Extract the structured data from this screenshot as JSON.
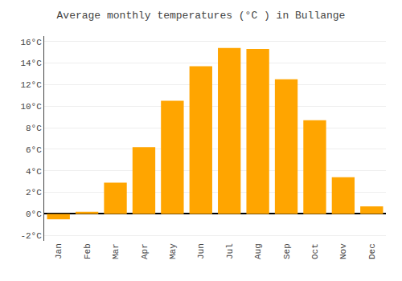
{
  "chart_data": {
    "type": "bar",
    "title": "Average monthly temperatures (°C ) in Bullange",
    "categories": [
      "Jan",
      "Feb",
      "Mar",
      "Apr",
      "May",
      "Jun",
      "Jul",
      "Aug",
      "Sep",
      "Oct",
      "Nov",
      "Dec"
    ],
    "values": [
      -0.5,
      0.2,
      2.9,
      6.2,
      10.5,
      13.7,
      15.4,
      15.3,
      12.5,
      8.7,
      3.4,
      0.7
    ],
    "color": "#FFA500",
    "ylim": [
      -2.5,
      16.5
    ],
    "yticks": [
      {
        "value": -2,
        "label": "-2°C"
      },
      {
        "value": 0,
        "label": "0°C"
      },
      {
        "value": 2,
        "label": "2°C"
      },
      {
        "value": 4,
        "label": "4°C"
      },
      {
        "value": 6,
        "label": "6°C"
      },
      {
        "value": 8,
        "label": "8°C"
      },
      {
        "value": 10,
        "label": "10°C"
      },
      {
        "value": 12,
        "label": "12°C"
      },
      {
        "value": 14,
        "label": "14°C"
      },
      {
        "value": 16,
        "label": "16°C"
      }
    ],
    "grid": true
  }
}
